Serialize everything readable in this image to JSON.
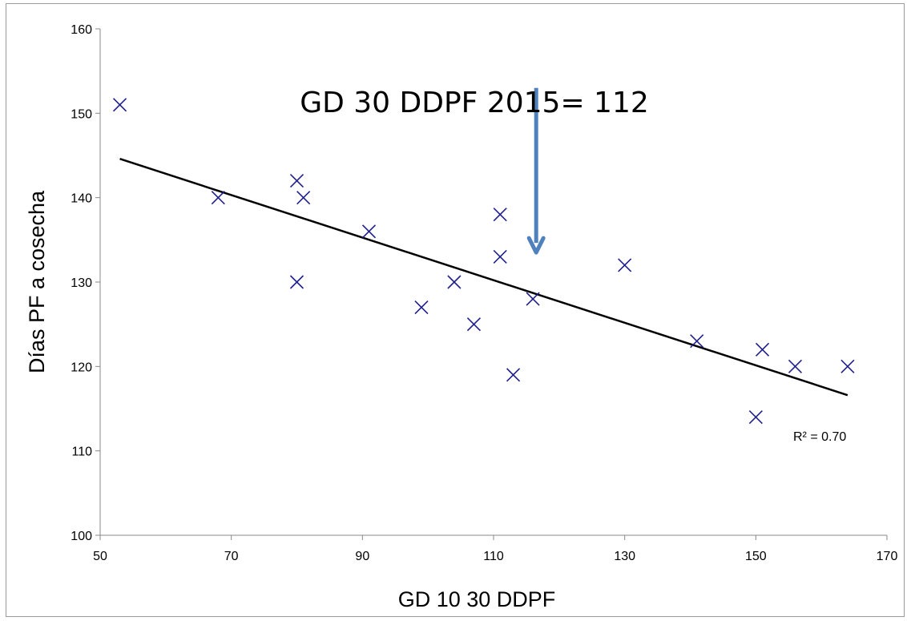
{
  "chart_data": {
    "type": "scatter",
    "title": "",
    "xlabel": "GD 10 30 DDPF",
    "ylabel": "Días PF a cosecha",
    "xlim": [
      50,
      170
    ],
    "ylim": [
      100,
      160
    ],
    "xticks": [
      "50",
      "70",
      "90",
      "110",
      "130",
      "150",
      "170"
    ],
    "yticks": [
      "100",
      "110",
      "120",
      "130",
      "140",
      "150",
      "160"
    ],
    "grid": false,
    "legend": "none",
    "marker": "x",
    "marker_color": "#1f1f8f",
    "points": [
      {
        "x": 53,
        "y": 151
      },
      {
        "x": 68,
        "y": 140
      },
      {
        "x": 80,
        "y": 142
      },
      {
        "x": 81,
        "y": 140
      },
      {
        "x": 80,
        "y": 130
      },
      {
        "x": 91,
        "y": 136
      },
      {
        "x": 99,
        "y": 127
      },
      {
        "x": 104,
        "y": 130
      },
      {
        "x": 107,
        "y": 125
      },
      {
        "x": 111,
        "y": 138
      },
      {
        "x": 111,
        "y": 133
      },
      {
        "x": 113,
        "y": 119
      },
      {
        "x": 116,
        "y": 128
      },
      {
        "x": 130,
        "y": 132
      },
      {
        "x": 141,
        "y": 123
      },
      {
        "x": 150,
        "y": 114
      },
      {
        "x": 151,
        "y": 122
      },
      {
        "x": 156,
        "y": 120
      },
      {
        "x": 164,
        "y": 120
      }
    ],
    "trendline": {
      "type": "linear",
      "x": [
        53,
        164
      ],
      "y": [
        144.6,
        116.6
      ],
      "color": "#000000",
      "r_squared_label": "R² = 0.70"
    },
    "annotation": {
      "text": "GD 30 DDPF 2015= 112",
      "arrow_color": "#4f81bd",
      "arrow_x": 116.5,
      "arrow_y_start": 153,
      "arrow_y_end": 133.5
    }
  }
}
